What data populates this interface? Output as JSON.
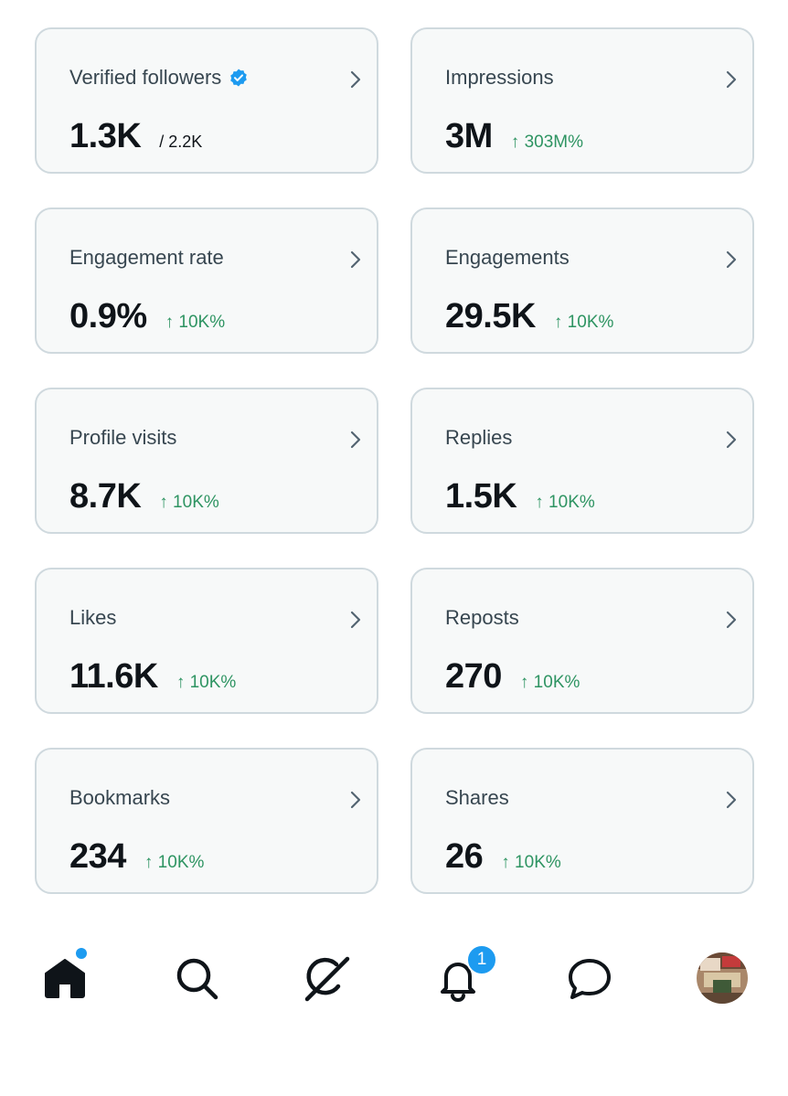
{
  "metrics": [
    {
      "title": "Verified followers",
      "value": "1.3K",
      "total": "/ 2.2K",
      "verified": true
    },
    {
      "title": "Impressions",
      "value": "3M",
      "change": "↑ 303M%"
    },
    {
      "title": "Engagement rate",
      "value": "0.9%",
      "change": "↑ 10K%"
    },
    {
      "title": "Engagements",
      "value": "29.5K",
      "change": "↑ 10K%"
    },
    {
      "title": "Profile visits",
      "value": "8.7K",
      "change": "↑ 10K%"
    },
    {
      "title": "Replies",
      "value": "1.5K",
      "change": "↑ 10K%"
    },
    {
      "title": "Likes",
      "value": "11.6K",
      "change": "↑ 10K%"
    },
    {
      "title": "Reposts",
      "value": "270",
      "change": "↑ 10K%"
    },
    {
      "title": "Bookmarks",
      "value": "234",
      "change": "↑ 10K%"
    },
    {
      "title": "Shares",
      "value": "26",
      "change": "↑ 10K%"
    }
  ],
  "nav": {
    "items": [
      {
        "name": "home",
        "icon": "home-icon",
        "has_dot": true
      },
      {
        "name": "search",
        "icon": "search-icon"
      },
      {
        "name": "grok",
        "icon": "grok-icon"
      },
      {
        "name": "notifications",
        "icon": "bell-icon",
        "badge": "1"
      },
      {
        "name": "messages",
        "icon": "chat-bubble-icon"
      },
      {
        "name": "profile",
        "icon": "avatar"
      }
    ]
  },
  "colors": {
    "card_bg": "#f7f9f9",
    "card_border": "#cfd9de",
    "positive": "#2e9462",
    "accent": "#1d9bf0",
    "text": "#0f1419"
  }
}
